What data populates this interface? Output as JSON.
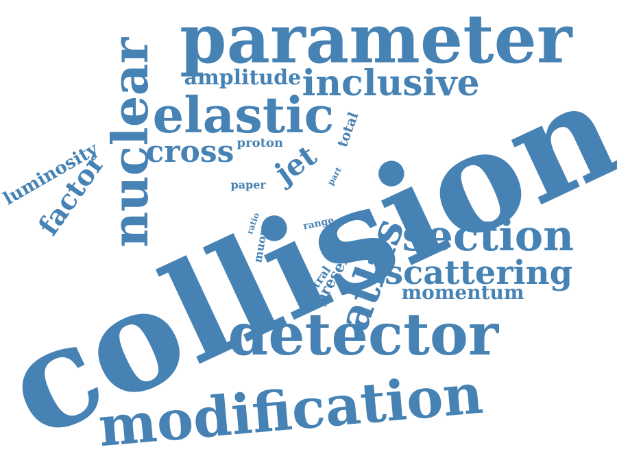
{
  "color": "#4682b4",
  "words": {
    "collision": "collision",
    "parameter": "parameter",
    "detector": "detector",
    "modification": "modification",
    "elastic": "elastic",
    "nuclear": "nuclear",
    "section": "section",
    "inclusive": "inclusive",
    "scattering": "scattering",
    "atlas": "atlas",
    "cross": "cross",
    "amplitude": "amplitude",
    "momentum": "momentum",
    "factor": "factor",
    "luminosity": "luminosity",
    "jet": "jet",
    "total": "total",
    "proton": "proton",
    "paper": "paper",
    "part": "part",
    "range": "range",
    "ratio": "ratio",
    "muon": "muon",
    "central": "central",
    "present": "present"
  }
}
